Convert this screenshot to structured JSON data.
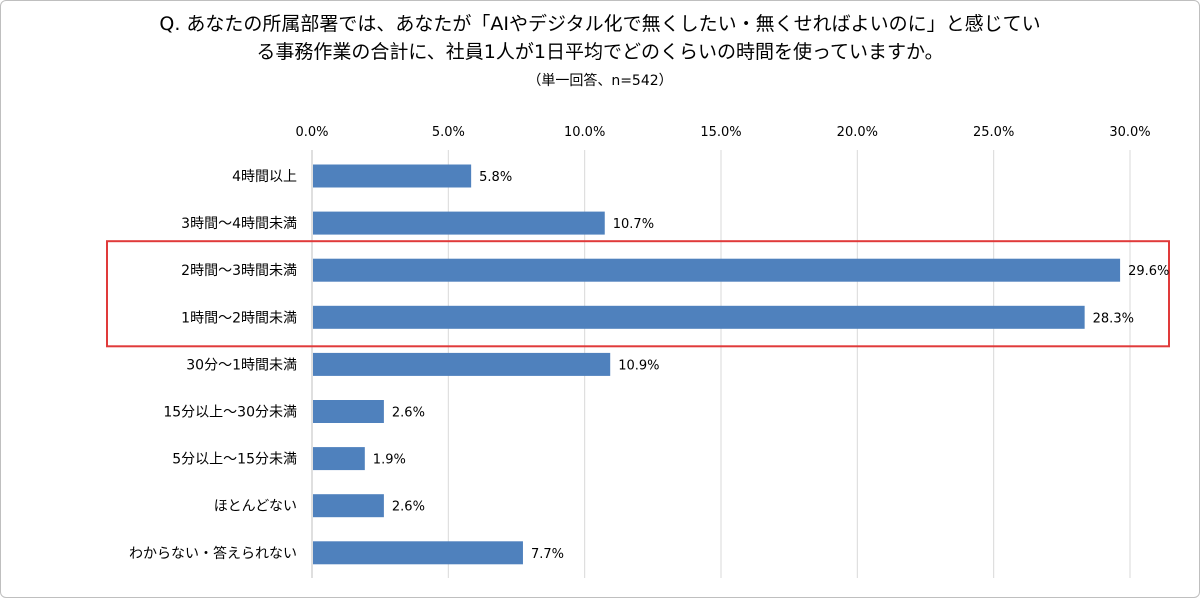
{
  "title_line1": "Q. あなたの所属部署では、あなたが「AIやデジタル化で無くしたい・無くせればよいのに」と感じてい",
  "title_line2": "る事務作業の合計に、社員1人が1日平均でどのくらいの時間を使っていますか。",
  "subtitle": "（単一回答、n=542）",
  "colors": {
    "bar": "#4f81bd",
    "highlight": "#e03a3a",
    "grid": "#d9d9d9"
  },
  "chart_data": {
    "type": "bar",
    "orientation": "horizontal",
    "categories": [
      "4時間以上",
      "3時間～4時間未満",
      "2時間～3時間未満",
      "1時間～2時間未満",
      "30分～1時間未満",
      "15分以上～30分未満",
      "5分以上～15分未満",
      "ほとんどない",
      "わからない・答えられない"
    ],
    "values": [
      5.8,
      10.7,
      29.6,
      28.3,
      10.9,
      2.6,
      1.9,
      2.6,
      7.7
    ],
    "value_labels": [
      "5.8%",
      "10.7%",
      "29.6%",
      "28.3%",
      "10.9%",
      "2.6%",
      "1.9%",
      "2.6%",
      "7.7%"
    ],
    "ticks": [
      "0.0%",
      "5.0%",
      "10.0%",
      "15.0%",
      "20.0%",
      "25.0%",
      "30.0%"
    ],
    "xlim": [
      0,
      30
    ],
    "axis_position": "top",
    "grid": true,
    "highlighted_categories": [
      "2時間～3時間未満",
      "1時間～2時間未満"
    ]
  }
}
